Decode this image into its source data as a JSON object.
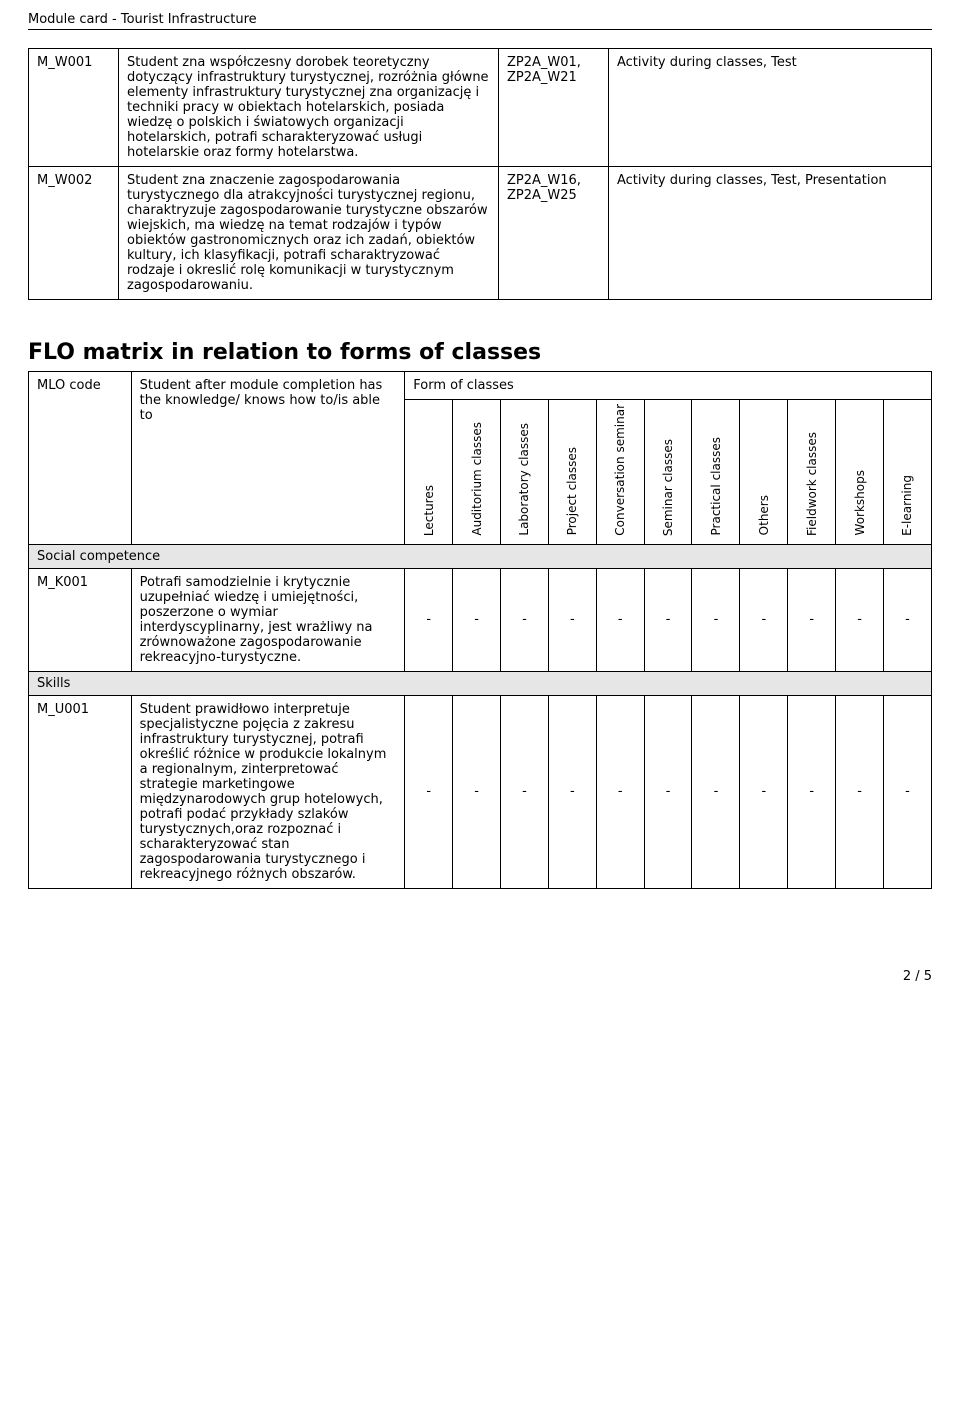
{
  "header": {
    "title": "Module card - Tourist Infrastructure"
  },
  "outcomes_table": {
    "rows": [
      {
        "code": "M_W001",
        "desc": "Student zna współczesny dorobek teoretyczny dotyczący infrastruktury turystycznej, rozróżnia główne elementy infrastruktury turystycznej zna organizację i techniki pracy w obiektach hotelarskich, posiada wiedzę o polskich i światowych organizacji hotelarskich, potrafi scharakteryzować usługi hotelarskie oraz formy hotelarstwa.",
        "refs": "ZP2A_W01, ZP2A_W21",
        "activity": "Activity during classes, Test"
      },
      {
        "code": "M_W002",
        "desc": "Student zna znaczenie zagospodarowania turystycznego dla atrakcyjności turystycznej regionu, charaktryzuje zagospodarowanie turystyczne obszarów wiejskich, ma wiedzę na temat rodzajów i typów obiektów gastronomicznych oraz ich zadań, obiektów kultury, ich klasyfikacji, potrafi scharaktryzować rodzaje i okreslić rolę komunikacji w turystycznym zagospodarowaniu.",
        "refs": "ZP2A_W16, ZP2A_W25",
        "activity": "Activity during classes, Test, Presentation"
      }
    ]
  },
  "flo": {
    "title": "FLO matrix in relation to forms of classes",
    "head_mlo": "MLO code",
    "head_desc": "Student after module completion has the knowledge/ knows how to/is able to",
    "head_form": "Form of classes",
    "columns": [
      "Lectures",
      "Auditorium classes",
      "Laboratory classes",
      "Project classes",
      "Conversation seminar",
      "Seminar classes",
      "Practical classes",
      "Others",
      "Fieldwork classes",
      "Workshops",
      "E-learning"
    ],
    "groups": [
      {
        "label": "Social competence",
        "rows": [
          {
            "code": "M_K001",
            "desc": "Potrafi samodzielnie i krytycznie uzupełniać wiedzę i umiejętności, poszerzone o wymiar interdyscyplinarny, jest wrażliwy na zrównoważone zagospodarowanie rekreacyjno-turystyczne.",
            "vals": [
              "-",
              "-",
              "-",
              "-",
              "-",
              "-",
              "-",
              "-",
              "-",
              "-",
              "-"
            ]
          }
        ]
      },
      {
        "label": "Skills",
        "rows": [
          {
            "code": "M_U001",
            "desc": "Student prawidłowo interpretuje specjalistyczne pojęcia z zakresu infrastruktury turystycznej, potrafi określić różnice w produkcie lokalnym a regionalnym, zinterpretować strategie marketingowe międzynarodowych grup hotelowych, potrafi podać przykłady szlaków turystycznych,oraz rozpoznać i scharakteryzować stan zagospodarowania turystycznego i rekreacyjnego różnych obszarów.",
            "vals": [
              "-",
              "-",
              "-",
              "-",
              "-",
              "-",
              "-",
              "-",
              "-",
              "-",
              "-"
            ]
          }
        ]
      }
    ]
  },
  "footer": {
    "page": "2 / 5"
  }
}
